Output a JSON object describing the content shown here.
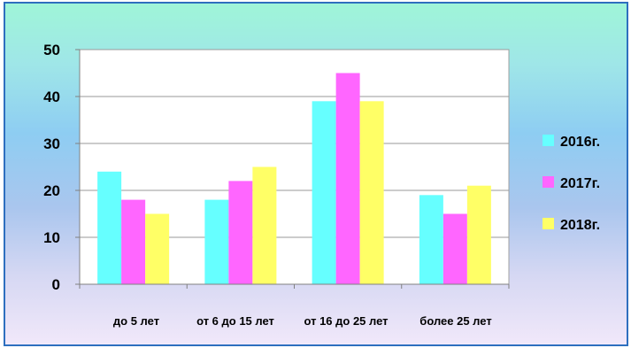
{
  "chart_data": {
    "type": "bar",
    "categories": [
      "до 5 лет",
      "от 6 до 15 лет",
      "от 16 до 25 лет",
      "более 25 лет"
    ],
    "series": [
      {
        "name": "2016г.",
        "color": "#66ffff",
        "values": [
          24,
          18,
          39,
          19
        ]
      },
      {
        "name": "2017г.",
        "color": "#ff66ff",
        "values": [
          18,
          22,
          45,
          15
        ]
      },
      {
        "name": "2018г.",
        "color": "#ffff66",
        "values": [
          15,
          25,
          39,
          21
        ]
      }
    ],
    "ylim": [
      0,
      50
    ],
    "yticks": [
      0,
      10,
      20,
      30,
      40,
      50
    ],
    "grid": true,
    "legend": "right"
  }
}
